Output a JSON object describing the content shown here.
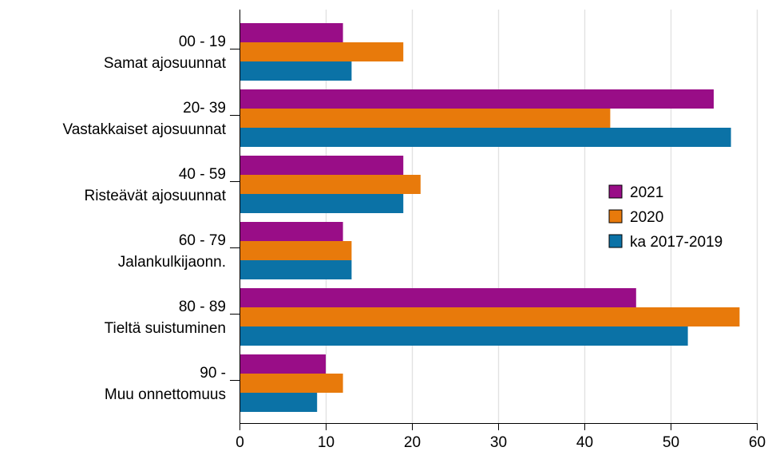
{
  "chart_data": {
    "type": "bar",
    "orientation": "horizontal",
    "categories": [
      {
        "code": "00 - 19",
        "name": "Samat ajosuunnat"
      },
      {
        "code": "20- 39",
        "name": "Vastakkaiset ajosuunnat"
      },
      {
        "code": "40 - 59",
        "name": "Risteävät ajosuunnat"
      },
      {
        "code": "60 - 79",
        "name": "Jalankulkijaonn."
      },
      {
        "code": "80 - 89",
        "name": "Tieltä suistuminen"
      },
      {
        "code": "90 -",
        "name": "Muu onnettomuus"
      }
    ],
    "series": [
      {
        "name": "2021",
        "color": "#990d87",
        "values": [
          12,
          55,
          19,
          12,
          46,
          10
        ]
      },
      {
        "name": "2020",
        "color": "#e87a0b",
        "values": [
          19,
          43,
          21,
          13,
          58,
          12
        ]
      },
      {
        "name": "ka 2017-2019",
        "color": "#0b72a6",
        "values": [
          13,
          57,
          19,
          13,
          52,
          9
        ]
      }
    ],
    "xlim": [
      0,
      60
    ],
    "xticks": [
      0,
      10,
      20,
      30,
      40,
      50,
      60
    ],
    "grid": true,
    "legend": "right"
  }
}
